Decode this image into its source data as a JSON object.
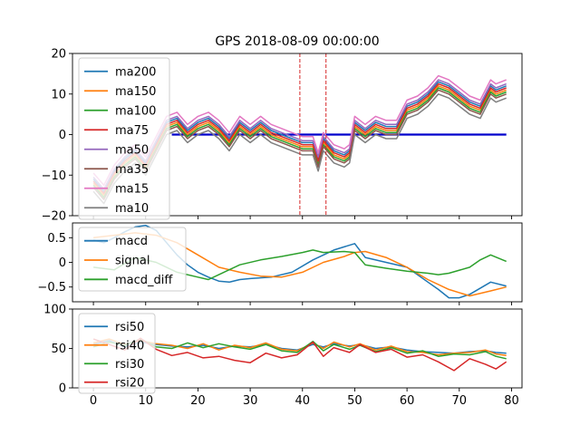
{
  "title": "GPS 2018-08-09 00:00:00",
  "chart_data": [
    {
      "type": "line",
      "panel": "moving-averages",
      "ylim": [
        -20,
        20
      ],
      "yticks": [
        -20,
        -10,
        0,
        10,
        20
      ],
      "xlim": [
        -4,
        82
      ],
      "legend_position": "upper-left",
      "zero_line": {
        "y": 0,
        "x_from": 15,
        "x_to": 79,
        "color": "#0000cc"
      },
      "vlines": [
        {
          "x": 39.5,
          "color": "#d62728"
        },
        {
          "x": 44.5,
          "color": "#d62728"
        }
      ],
      "anchor_x": [
        0,
        2,
        4,
        6,
        8,
        10,
        12,
        14,
        16,
        18,
        20,
        22,
        24,
        26,
        28,
        30,
        32,
        34,
        36,
        38,
        40,
        42,
        43,
        44,
        46,
        48,
        49,
        50,
        52,
        54,
        56,
        58,
        60,
        62,
        64,
        66,
        68,
        70,
        72,
        74,
        76,
        77,
        79
      ],
      "base": [
        -11,
        -14,
        -9,
        -6,
        -4,
        -7,
        -2,
        3,
        4,
        1,
        3,
        4,
        2,
        -1,
        3,
        1,
        3,
        1,
        0,
        -1,
        -2,
        -2,
        -6,
        -1,
        -4,
        -5,
        -4,
        3,
        1,
        3,
        2,
        2,
        7,
        8,
        10,
        13,
        12,
        10,
        8,
        7,
        12,
        11,
        12
      ],
      "series": [
        {
          "name": "ma200",
          "color": "#1f77b4",
          "offset": 0
        },
        {
          "name": "ma150",
          "color": "#ff7f0e",
          "offset": -1
        },
        {
          "name": "ma100",
          "color": "#2ca02c",
          "offset": -1.5
        },
        {
          "name": "ma75",
          "color": "#d62728",
          "offset": -0.5
        },
        {
          "name": "ma50",
          "color": "#9467bd",
          "offset": 0.5
        },
        {
          "name": "ma35",
          "color": "#8c564b",
          "offset": -2
        },
        {
          "name": "ma15",
          "color": "#e377c2",
          "offset": 1.5
        },
        {
          "name": "ma10",
          "color": "#7f7f7f",
          "offset": -3
        }
      ]
    },
    {
      "type": "line",
      "panel": "macd",
      "ylim": [
        -0.8,
        0.8
      ],
      "yticks": [
        -0.5,
        0.0,
        0.5
      ],
      "xlim": [
        -4,
        82
      ],
      "legend_position": "upper-left",
      "series": [
        {
          "name": "macd",
          "color": "#1f77b4",
          "x": [
            0,
            2,
            4,
            6,
            8,
            10,
            12,
            14,
            16,
            18,
            20,
            22,
            24,
            26,
            28,
            30,
            34,
            38,
            42,
            46,
            50,
            52,
            56,
            60,
            64,
            66,
            68,
            70,
            72,
            76,
            79
          ],
          "y": [
            0.45,
            0.4,
            0.5,
            0.62,
            0.72,
            0.75,
            0.65,
            0.4,
            0.15,
            -0.05,
            -0.2,
            -0.3,
            -0.38,
            -0.4,
            -0.35,
            -0.33,
            -0.3,
            -0.2,
            0.05,
            0.25,
            0.38,
            0.1,
            0.0,
            -0.1,
            -0.4,
            -0.55,
            -0.72,
            -0.72,
            -0.65,
            -0.4,
            -0.48
          ]
        },
        {
          "name": "signal",
          "color": "#ff7f0e",
          "x": [
            0,
            4,
            8,
            12,
            16,
            20,
            24,
            28,
            32,
            36,
            40,
            44,
            48,
            50,
            52,
            56,
            60,
            64,
            68,
            72,
            76,
            79
          ],
          "y": [
            0.5,
            0.55,
            0.6,
            0.55,
            0.4,
            0.15,
            -0.1,
            -0.2,
            -0.28,
            -0.3,
            -0.2,
            0.0,
            0.12,
            0.2,
            0.22,
            0.1,
            -0.1,
            -0.35,
            -0.55,
            -0.68,
            -0.58,
            -0.5
          ]
        },
        {
          "name": "macd_diff",
          "color": "#2ca02c",
          "x": [
            0,
            4,
            8,
            12,
            16,
            20,
            22,
            24,
            28,
            32,
            36,
            40,
            42,
            44,
            48,
            50,
            52,
            56,
            60,
            64,
            66,
            68,
            72,
            74,
            76,
            79
          ],
          "y": [
            -0.1,
            -0.15,
            0.1,
            0.0,
            -0.2,
            -0.3,
            -0.35,
            -0.25,
            -0.05,
            0.05,
            0.12,
            0.2,
            0.25,
            0.2,
            0.22,
            0.2,
            -0.05,
            -0.12,
            -0.18,
            -0.22,
            -0.25,
            -0.22,
            -0.1,
            0.05,
            0.15,
            0.02
          ]
        }
      ]
    },
    {
      "type": "line",
      "panel": "rsi",
      "ylim": [
        0,
        100
      ],
      "yticks": [
        0,
        50,
        100
      ],
      "xlim": [
        -4,
        82
      ],
      "xticks": [
        0,
        10,
        20,
        30,
        40,
        50,
        60,
        70,
        80
      ],
      "legend_position": "upper-left",
      "series": [
        {
          "name": "rsi50",
          "color": "#1f77b4",
          "x": [
            0,
            3,
            6,
            9,
            12,
            15,
            18,
            21,
            24,
            27,
            30,
            33,
            36,
            39,
            42,
            44,
            46,
            49,
            51,
            54,
            57,
            60,
            63,
            66,
            69,
            72,
            75,
            77,
            79
          ],
          "y": [
            55,
            60,
            52,
            58,
            55,
            53,
            52,
            54,
            50,
            53,
            52,
            55,
            50,
            48,
            55,
            52,
            56,
            53,
            55,
            50,
            52,
            48,
            46,
            45,
            44,
            46,
            47,
            45,
            44
          ]
        },
        {
          "name": "rsi40",
          "color": "#ff7f0e",
          "x": [
            0,
            3,
            6,
            9,
            12,
            15,
            18,
            21,
            24,
            27,
            30,
            33,
            36,
            39,
            42,
            44,
            46,
            49,
            51,
            54,
            57,
            60,
            63,
            66,
            69,
            72,
            75,
            77,
            79
          ],
          "y": [
            57,
            62,
            55,
            60,
            56,
            54,
            50,
            56,
            48,
            54,
            51,
            57,
            49,
            47,
            57,
            50,
            58,
            52,
            56,
            48,
            53,
            46,
            45,
            42,
            44,
            45,
            48,
            43,
            41
          ]
        },
        {
          "name": "rsi30",
          "color": "#2ca02c",
          "x": [
            0,
            3,
            6,
            9,
            12,
            15,
            18,
            21,
            24,
            27,
            30,
            33,
            36,
            39,
            42,
            44,
            46,
            49,
            51,
            54,
            57,
            60,
            63,
            66,
            69,
            72,
            75,
            77,
            79
          ],
          "y": [
            52,
            58,
            54,
            62,
            52,
            50,
            57,
            51,
            56,
            52,
            49,
            55,
            47,
            45,
            59,
            47,
            55,
            49,
            54,
            46,
            51,
            44,
            47,
            40,
            43,
            42,
            46,
            40,
            37
          ]
        },
        {
          "name": "rsi20",
          "color": "#d62728",
          "x": [
            0,
            3,
            6,
            9,
            12,
            15,
            18,
            21,
            24,
            27,
            30,
            33,
            36,
            39,
            42,
            44,
            46,
            49,
            51,
            54,
            57,
            60,
            63,
            66,
            69,
            72,
            75,
            77,
            79
          ],
          "y": [
            62,
            55,
            48,
            63,
            49,
            41,
            45,
            38,
            40,
            35,
            32,
            44,
            38,
            42,
            58,
            40,
            51,
            45,
            55,
            45,
            49,
            39,
            42,
            33,
            22,
            37,
            30,
            24,
            33
          ]
        }
      ]
    }
  ]
}
